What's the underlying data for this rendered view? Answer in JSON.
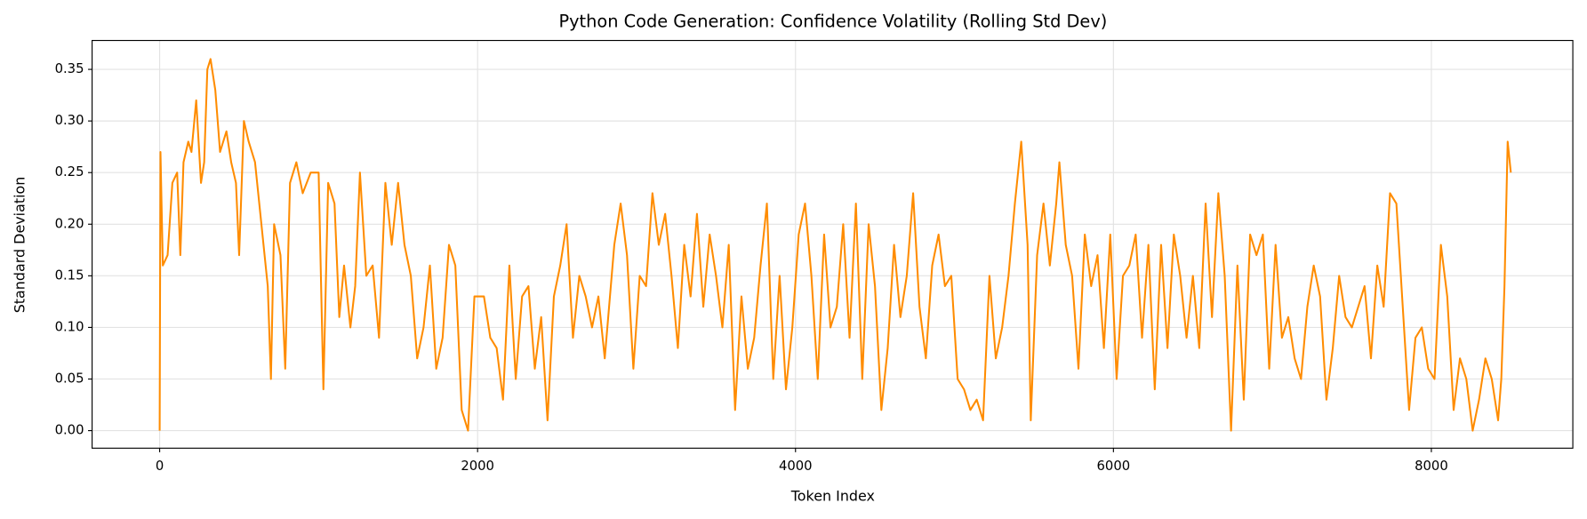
{
  "chart_data": {
    "type": "line",
    "title": "Python Code Generation: Confidence Volatility (Rolling Std Dev)",
    "xlabel": "Token Index",
    "ylabel": "Standard Deviation",
    "color": "#ff8c00",
    "grid": true,
    "xlim": [
      -425,
      8890
    ],
    "ylim": [
      -0.017,
      0.378
    ],
    "xticks": [
      0,
      2000,
      4000,
      6000,
      8000
    ],
    "yticks": [
      {
        "value": 0,
        "label": "0.00"
      },
      0.05,
      {
        "value": 0.1,
        "label": "0.10"
      },
      0.15,
      {
        "value": 0.2,
        "label": "0.20"
      },
      0.25,
      {
        "value": 0.3,
        "label": "0.30"
      },
      0.35
    ],
    "x": [
      0,
      5,
      20,
      50,
      80,
      110,
      130,
      150,
      180,
      200,
      230,
      260,
      280,
      300,
      320,
      350,
      380,
      420,
      450,
      480,
      500,
      530,
      560,
      600,
      640,
      680,
      700,
      720,
      760,
      790,
      820,
      860,
      900,
      950,
      1000,
      1030,
      1060,
      1100,
      1130,
      1160,
      1200,
      1230,
      1260,
      1300,
      1340,
      1380,
      1420,
      1460,
      1500,
      1540,
      1580,
      1620,
      1660,
      1700,
      1740,
      1780,
      1820,
      1860,
      1900,
      1940,
      1980,
      2040,
      2080,
      2120,
      2160,
      2200,
      2240,
      2280,
      2320,
      2360,
      2400,
      2440,
      2480,
      2520,
      2560,
      2600,
      2640,
      2680,
      2720,
      2760,
      2800,
      2860,
      2900,
      2940,
      2980,
      3020,
      3060,
      3100,
      3140,
      3180,
      3220,
      3260,
      3300,
      3340,
      3380,
      3420,
      3460,
      3500,
      3540,
      3580,
      3620,
      3660,
      3700,
      3740,
      3780,
      3820,
      3860,
      3900,
      3940,
      3980,
      4020,
      4060,
      4100,
      4140,
      4180,
      4220,
      4260,
      4300,
      4340,
      4380,
      4420,
      4460,
      4500,
      4540,
      4580,
      4620,
      4660,
      4700,
      4740,
      4780,
      4820,
      4860,
      4900,
      4940,
      4980,
      5020,
      5060,
      5100,
      5140,
      5180,
      5220,
      5260,
      5300,
      5340,
      5380,
      5420,
      5460,
      5480,
      5520,
      5560,
      5600,
      5640,
      5660,
      5700,
      5740,
      5780,
      5820,
      5860,
      5900,
      5940,
      5980,
      6020,
      6060,
      6100,
      6140,
      6180,
      6220,
      6260,
      6300,
      6340,
      6380,
      6420,
      6460,
      6500,
      6540,
      6580,
      6620,
      6660,
      6700,
      6740,
      6780,
      6820,
      6860,
      6900,
      6940,
      6980,
      7020,
      7060,
      7100,
      7140,
      7180,
      7220,
      7260,
      7300,
      7340,
      7380,
      7420,
      7460,
      7500,
      7540,
      7580,
      7620,
      7660,
      7700,
      7740,
      7780,
      7820,
      7860,
      7900,
      7940,
      7980,
      8020,
      8060,
      8100,
      8140,
      8180,
      8220,
      8260,
      8300,
      8340,
      8380,
      8420,
      8440,
      8460,
      8480,
      8500
    ],
    "values": [
      0.0,
      0.27,
      0.16,
      0.17,
      0.24,
      0.25,
      0.17,
      0.26,
      0.28,
      0.27,
      0.32,
      0.24,
      0.26,
      0.35,
      0.36,
      0.33,
      0.27,
      0.29,
      0.26,
      0.24,
      0.17,
      0.3,
      0.28,
      0.26,
      0.2,
      0.14,
      0.05,
      0.2,
      0.17,
      0.06,
      0.24,
      0.26,
      0.23,
      0.25,
      0.25,
      0.04,
      0.24,
      0.22,
      0.11,
      0.16,
      0.1,
      0.14,
      0.25,
      0.15,
      0.16,
      0.09,
      0.24,
      0.18,
      0.24,
      0.18,
      0.15,
      0.07,
      0.1,
      0.16,
      0.06,
      0.09,
      0.18,
      0.16,
      0.02,
      0.0,
      0.13,
      0.13,
      0.09,
      0.08,
      0.03,
      0.16,
      0.05,
      0.13,
      0.14,
      0.06,
      0.11,
      0.01,
      0.13,
      0.16,
      0.2,
      0.09,
      0.15,
      0.13,
      0.1,
      0.13,
      0.07,
      0.18,
      0.22,
      0.17,
      0.06,
      0.15,
      0.14,
      0.23,
      0.18,
      0.21,
      0.15,
      0.08,
      0.18,
      0.13,
      0.21,
      0.12,
      0.19,
      0.15,
      0.1,
      0.18,
      0.02,
      0.13,
      0.06,
      0.09,
      0.16,
      0.22,
      0.05,
      0.15,
      0.04,
      0.1,
      0.19,
      0.22,
      0.15,
      0.05,
      0.19,
      0.1,
      0.12,
      0.2,
      0.09,
      0.22,
      0.05,
      0.2,
      0.14,
      0.02,
      0.08,
      0.18,
      0.11,
      0.15,
      0.23,
      0.12,
      0.07,
      0.16,
      0.19,
      0.14,
      0.15,
      0.05,
      0.04,
      0.02,
      0.03,
      0.01,
      0.15,
      0.07,
      0.1,
      0.15,
      0.22,
      0.28,
      0.18,
      0.01,
      0.17,
      0.22,
      0.16,
      0.22,
      0.26,
      0.18,
      0.15,
      0.06,
      0.19,
      0.14,
      0.17,
      0.08,
      0.19,
      0.05,
      0.15,
      0.16,
      0.19,
      0.09,
      0.18,
      0.04,
      0.18,
      0.08,
      0.19,
      0.15,
      0.09,
      0.15,
      0.08,
      0.22,
      0.11,
      0.23,
      0.15,
      0.0,
      0.16,
      0.03,
      0.19,
      0.17,
      0.19,
      0.06,
      0.18,
      0.09,
      0.11,
      0.07,
      0.05,
      0.12,
      0.16,
      0.13,
      0.03,
      0.08,
      0.15,
      0.11,
      0.1,
      0.12,
      0.14,
      0.07,
      0.16,
      0.12,
      0.23,
      0.22,
      0.12,
      0.02,
      0.09,
      0.1,
      0.06,
      0.05,
      0.18,
      0.13,
      0.02,
      0.07,
      0.05,
      0.0,
      0.03,
      0.07,
      0.05,
      0.01,
      0.05,
      0.14,
      0.28,
      0.25
    ]
  }
}
